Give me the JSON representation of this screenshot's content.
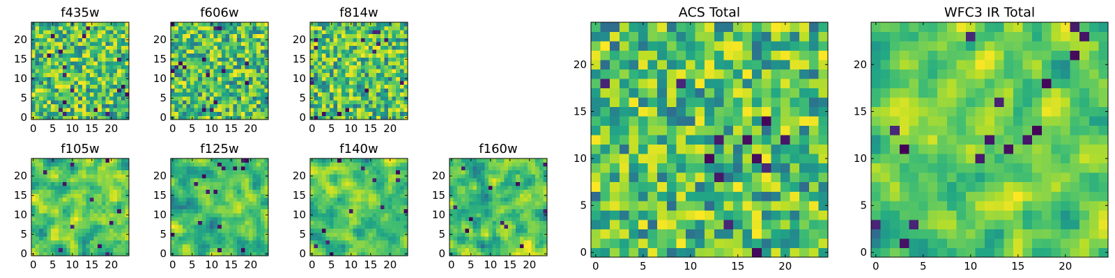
{
  "chart_data": [
    {
      "type": "heatmap",
      "title": "f435w",
      "seed": 11,
      "grid": [
        25,
        25
      ],
      "xlim": [
        -0.5,
        24.5
      ],
      "ylim": [
        -0.5,
        24.5
      ],
      "xticks": [
        0,
        5,
        10,
        15,
        20
      ],
      "yticks": [
        0,
        5,
        10,
        15,
        20
      ],
      "colormap": "viridis"
    },
    {
      "type": "heatmap",
      "title": "f606w",
      "seed": 23,
      "grid": [
        25,
        25
      ],
      "xlim": [
        -0.5,
        24.5
      ],
      "ylim": [
        -0.5,
        24.5
      ],
      "xticks": [
        0,
        5,
        10,
        15,
        20
      ],
      "yticks": [
        0,
        5,
        10,
        15,
        20
      ],
      "colormap": "viridis"
    },
    {
      "type": "heatmap",
      "title": "f814w",
      "seed": 37,
      "grid": [
        25,
        25
      ],
      "xlim": [
        -0.5,
        24.5
      ],
      "ylim": [
        -0.5,
        24.5
      ],
      "xticks": [
        0,
        5,
        10,
        15,
        20
      ],
      "yticks": [
        0,
        5,
        10,
        15,
        20
      ],
      "colormap": "viridis"
    },
    {
      "type": "heatmap",
      "title": "f105w",
      "seed": 41,
      "grid": [
        25,
        25
      ],
      "xlim": [
        -0.5,
        24.5
      ],
      "ylim": [
        -0.5,
        24.5
      ],
      "xticks": [
        0,
        5,
        10,
        15,
        20
      ],
      "yticks": [
        0,
        5,
        10,
        15,
        20
      ],
      "colormap": "viridis"
    },
    {
      "type": "heatmap",
      "title": "f125w",
      "seed": 53,
      "grid": [
        25,
        25
      ],
      "xlim": [
        -0.5,
        24.5
      ],
      "ylim": [
        -0.5,
        24.5
      ],
      "xticks": [
        0,
        5,
        10,
        15,
        20
      ],
      "yticks": [
        0,
        5,
        10,
        15,
        20
      ],
      "colormap": "viridis"
    },
    {
      "type": "heatmap",
      "title": "f140w",
      "seed": 67,
      "grid": [
        25,
        25
      ],
      "xlim": [
        -0.5,
        24.5
      ],
      "ylim": [
        -0.5,
        24.5
      ],
      "xticks": [
        0,
        5,
        10,
        15,
        20
      ],
      "yticks": [
        0,
        5,
        10,
        15,
        20
      ],
      "colormap": "viridis"
    },
    {
      "type": "heatmap",
      "title": "f160w",
      "seed": 79,
      "grid": [
        25,
        25
      ],
      "xlim": [
        -0.5,
        24.5
      ],
      "ylim": [
        -0.5,
        24.5
      ],
      "xticks": [
        0,
        5,
        10,
        15,
        20
      ],
      "yticks": [
        0,
        5,
        10,
        15,
        20
      ],
      "colormap": "viridis"
    },
    {
      "type": "heatmap",
      "title": "ACS Total",
      "seed": 97,
      "grid": [
        25,
        25
      ],
      "xlim": [
        -0.5,
        24.5
      ],
      "ylim": [
        -0.5,
        24.5
      ],
      "xticks": [
        0,
        5,
        10,
        15,
        20
      ],
      "yticks": [
        0,
        5,
        10,
        15,
        20
      ],
      "colormap": "viridis"
    },
    {
      "type": "heatmap",
      "title": "WFC3 IR Total",
      "seed": 113,
      "grid": [
        25,
        25
      ],
      "xlim": [
        -0.5,
        24.5
      ],
      "ylim": [
        -0.5,
        24.5
      ],
      "xticks": [
        0,
        5,
        10,
        15,
        20
      ],
      "yticks": [
        0,
        5,
        10,
        15,
        20
      ],
      "colormap": "viridis"
    }
  ]
}
